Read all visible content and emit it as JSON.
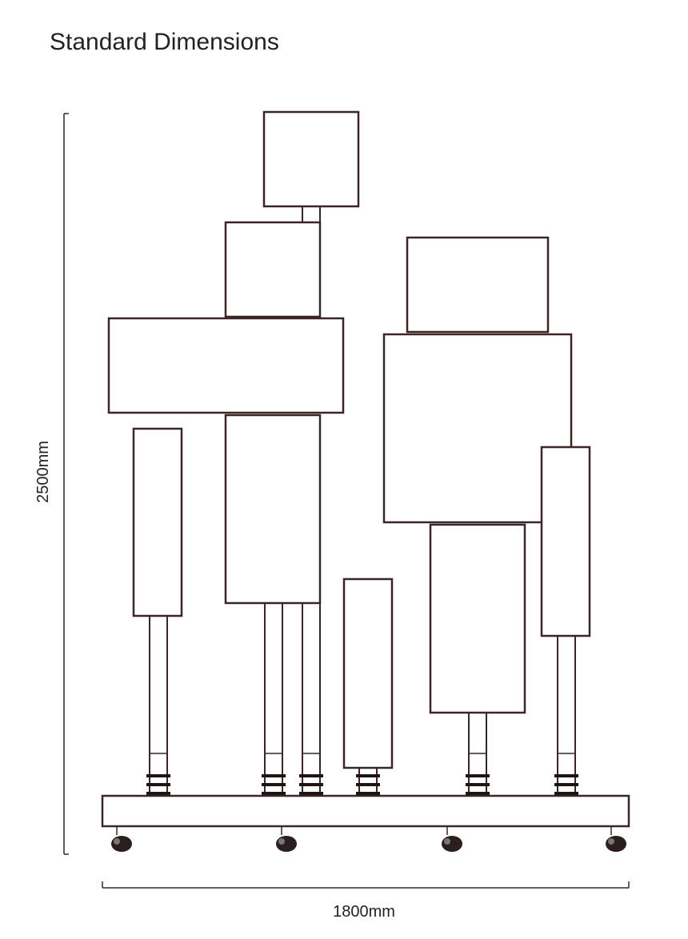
{
  "title": "Standard Dimensions",
  "dimensions": {
    "height": "2500mm",
    "width": "1800mm"
  }
}
